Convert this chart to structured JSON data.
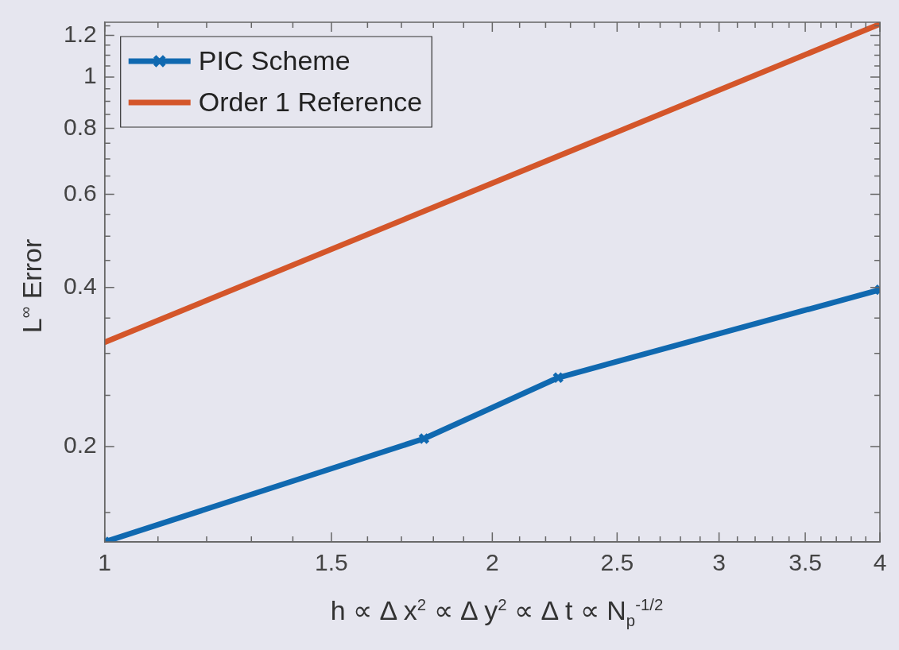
{
  "chart_data": {
    "type": "line",
    "xlabel": "h ∝ Δ x$^{2}$ ∝ Δ y$^{2}$ ∝ Δ t ∝ N$_{p}$$^{-1/2}$",
    "ylabel": "L$^{∞}$ Error",
    "log": "xy",
    "grid": false,
    "legend": "top left",
    "line_style": "solid",
    "xlim": [
      1,
      4
    ],
    "xticks": [
      1,
      {
        "value": 1.1,
        "label": null
      },
      {
        "value": 1.2,
        "label": null
      },
      {
        "value": 1.3,
        "label": null
      },
      {
        "value": 1.4,
        "label": null
      },
      1.5,
      {
        "value": 1.6,
        "label": null
      },
      {
        "value": 1.7,
        "label": null
      },
      {
        "value": 1.8,
        "label": null
      },
      {
        "value": 1.9,
        "label": null
      },
      2,
      {
        "value": 2.1,
        "label": null
      },
      {
        "value": 2.2,
        "label": null
      },
      {
        "value": 2.3,
        "label": null
      },
      {
        "value": 2.4,
        "label": null
      },
      2.5,
      {
        "value": 2.6,
        "label": null
      },
      {
        "value": 2.7,
        "label": null
      },
      {
        "value": 2.8,
        "label": null
      },
      {
        "value": 2.9,
        "label": null
      },
      3,
      {
        "value": 3.1,
        "label": null
      },
      {
        "value": 3.2,
        "label": null
      },
      {
        "value": 3.3,
        "label": null
      },
      {
        "value": 3.4,
        "label": null
      },
      3.5,
      {
        "value": 3.6,
        "label": null
      },
      {
        "value": 3.7,
        "label": null
      },
      {
        "value": 3.8,
        "label": null
      },
      {
        "value": 3.9,
        "label": null
      },
      4
    ],
    "ylim": [
      0.132,
      1.27
    ],
    "yticks": [
      {
        "value": 0.15,
        "label": null
      },
      0.2,
      {
        "value": 0.25,
        "label": null
      },
      {
        "value": 0.3,
        "label": null
      },
      {
        "value": 0.35,
        "label": null
      },
      0.4,
      {
        "value": 0.45,
        "label": null
      },
      {
        "value": 0.5,
        "label": null
      },
      {
        "value": 0.55,
        "label": null
      },
      0.6,
      {
        "value": 0.65,
        "label": null
      },
      {
        "value": 0.7,
        "label": null
      },
      {
        "value": 0.75,
        "label": null
      },
      0.8,
      {
        "value": 0.85,
        "label": null
      },
      {
        "value": 0.9,
        "label": null
      },
      {
        "value": 0.95,
        "label": null
      },
      1,
      {
        "value": 1.05,
        "label": null
      },
      {
        "value": 1.1,
        "label": null
      },
      {
        "value": 1.15,
        "label": null
      },
      1.2,
      {
        "value": 1.25,
        "label": null
      }
    ],
    "series": [
      {
        "name": "PIC Scheme",
        "color": "#1069b0",
        "marker": "cross",
        "x": [
          1,
          1.77,
          2.25,
          4
        ],
        "values": [
          0.132,
          0.207,
          0.27,
          0.396
        ]
      },
      {
        "name": "Order 1 Reference",
        "color": "#d4562a",
        "marker": "none",
        "x": [
          1,
          4
        ],
        "values": [
          0.315,
          1.26
        ]
      }
    ]
  }
}
